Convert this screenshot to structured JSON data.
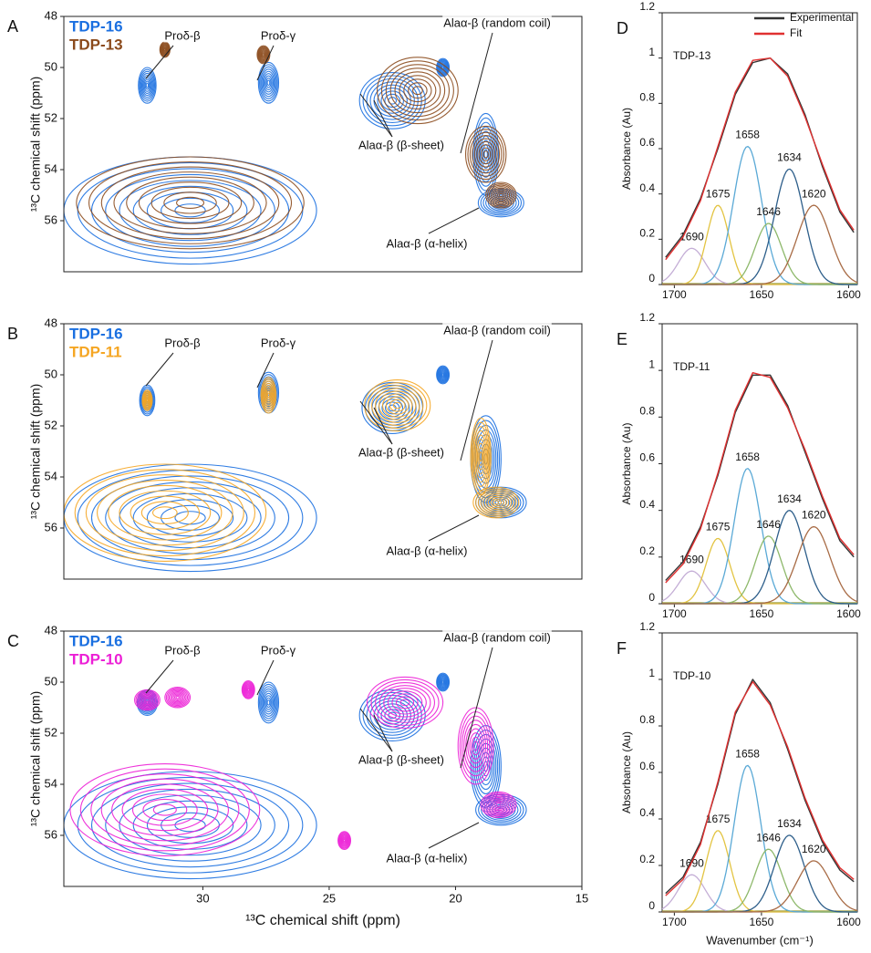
{
  "chart_data": [
    {
      "type": "contour",
      "panel_label": "A",
      "xlim": [
        35.5,
        15
      ],
      "ylim": [
        48,
        58
      ],
      "yticks": [
        48,
        50,
        52,
        54,
        56
      ],
      "y_label": "¹³C chemical shift (ppm)",
      "series": [
        {
          "name": "TDP-16",
          "color": "#1a6fe0",
          "x": [
            32.2,
            27.4,
            22.5,
            20.5,
            18.8,
            18.2,
            30.5
          ],
          "values": [
            50.7,
            50.6,
            51.3,
            50.0,
            53.4,
            55.3,
            55.6
          ],
          "x_widths": [
            0.7,
            0.8,
            2.6,
            0.5,
            1.0,
            1.8,
            10
          ],
          "y_widths": [
            1.4,
            1.6,
            2.2,
            0.7,
            3.2,
            1.1,
            4.2
          ]
        },
        {
          "name": "TDP-13",
          "color": "#8b4a1c",
          "x": [
            31.5,
            27.6,
            21.5,
            18.8,
            18.2,
            30.5
          ],
          "values": [
            49.3,
            49.5,
            50.9,
            53.4,
            55.0,
            55.3
          ],
          "x_widths": [
            0.4,
            0.5,
            3.2,
            1.6,
            1.2,
            9
          ],
          "y_widths": [
            0.6,
            0.7,
            2.6,
            2.2,
            1.0,
            3.6
          ]
        }
      ],
      "annotations": [
        "Proδ-β",
        "Proδ-γ",
        "Alaα-β (random coil)",
        "Alaα-β (β-sheet)",
        "Alaα-β (α-helix)"
      ]
    },
    {
      "type": "contour",
      "panel_label": "B",
      "xlim": [
        35.5,
        15
      ],
      "ylim": [
        48,
        58
      ],
      "yticks": [
        48,
        50,
        52,
        54,
        56
      ],
      "y_label": "¹³C chemical shift (ppm)",
      "series": [
        {
          "name": "TDP-16",
          "color": "#1a6fe0",
          "x": [
            32.2,
            27.4,
            22.5,
            20.5,
            18.8,
            18.2,
            30.5
          ],
          "values": [
            51.0,
            50.7,
            51.3,
            50.0,
            53.3,
            55.0,
            55.6
          ],
          "x_widths": [
            0.6,
            0.8,
            2.4,
            0.5,
            1.2,
            2.0,
            10
          ],
          "y_widths": [
            1.2,
            1.6,
            2.0,
            0.7,
            3.4,
            1.2,
            4.2
          ]
        },
        {
          "name": "TDP-11",
          "color": "#f5a623",
          "x": [
            32.2,
            27.4,
            22.3,
            19.0,
            18.4,
            31.5
          ],
          "values": [
            51.0,
            50.8,
            51.2,
            53.2,
            55.0,
            55.4
          ],
          "x_widths": [
            0.4,
            0.6,
            2.6,
            0.8,
            1.8,
            8
          ],
          "y_widths": [
            0.8,
            1.4,
            2.0,
            3.0,
            1.2,
            3.8
          ]
        }
      ],
      "annotations": [
        "Proδ-β",
        "Proδ-γ",
        "Alaα-β (random coil)",
        "Alaα-β (β-sheet)",
        "Alaα-β (α-helix)"
      ]
    },
    {
      "type": "contour",
      "panel_label": "C",
      "xlim": [
        35.5,
        15
      ],
      "ylim": [
        48,
        58
      ],
      "xticks": [
        30,
        25,
        20,
        15
      ],
      "yticks": [
        48,
        50,
        52,
        54,
        56
      ],
      "x_label": "¹³C chemical shift (ppm)",
      "y_label": "¹³C chemical shift (ppm)",
      "series": [
        {
          "name": "TDP-16",
          "color": "#1a6fe0",
          "x": [
            32.2,
            27.4,
            22.5,
            20.5,
            18.8,
            18.2,
            30.5
          ],
          "values": [
            50.8,
            50.8,
            51.3,
            50.0,
            53.3,
            55.0,
            55.6
          ],
          "x_widths": [
            0.8,
            0.8,
            2.6,
            0.5,
            1.2,
            2.0,
            10
          ],
          "y_widths": [
            1.0,
            1.6,
            2.0,
            0.7,
            3.2,
            1.2,
            4.2
          ]
        },
        {
          "name": "TDP-10",
          "color": "#ec1fd6",
          "x": [
            32.2,
            31.0,
            28.2,
            22.0,
            19.2,
            18.3,
            31.5,
            24.4
          ],
          "values": [
            50.7,
            50.6,
            50.3,
            50.8,
            52.5,
            54.8,
            55.0,
            56.2
          ],
          "x_widths": [
            1.0,
            1.0,
            0.5,
            3.0,
            1.4,
            1.4,
            7.5,
            0.5
          ],
          "y_widths": [
            0.8,
            0.8,
            0.7,
            2.0,
            3.0,
            1.0,
            3.6,
            0.7
          ]
        }
      ],
      "annotations": [
        "Proδ-β",
        "Proδ-γ",
        "Alaα-β (random coil)",
        "Alaα-β (β-sheet)",
        "Alaα-β (α-helix)"
      ]
    },
    {
      "type": "line",
      "panel_label": "D",
      "title": "TDP-13",
      "xlim": [
        1707,
        1595
      ],
      "ylim": [
        0,
        1.2
      ],
      "xticks": [
        1700,
        1650,
        1600
      ],
      "yticks": [
        0,
        0.2,
        0.4,
        0.6,
        0.8,
        1,
        1.2
      ],
      "y_label": "Absorbance (Au)",
      "legend": "upper right",
      "x": [
        1705,
        1695,
        1685,
        1675,
        1665,
        1655,
        1645,
        1635,
        1625,
        1615,
        1605,
        1597
      ],
      "series": [
        {
          "name": "Experimental",
          "color": "#333333",
          "values": [
            0.12,
            0.22,
            0.38,
            0.6,
            0.84,
            0.98,
            1.0,
            0.93,
            0.75,
            0.52,
            0.32,
            0.23
          ]
        },
        {
          "name": "Fit",
          "color": "#e03030",
          "values": [
            0.11,
            0.21,
            0.37,
            0.61,
            0.85,
            0.99,
            1.0,
            0.92,
            0.74,
            0.53,
            0.33,
            0.24
          ]
        }
      ],
      "components": [
        {
          "center": 1690,
          "height": 0.16,
          "fwhm": 18,
          "color": "#c4aed6"
        },
        {
          "center": 1675,
          "height": 0.35,
          "fwhm": 15,
          "color": "#e3c442"
        },
        {
          "center": 1658,
          "height": 0.61,
          "fwhm": 19,
          "color": "#5aa9d6"
        },
        {
          "center": 1646,
          "height": 0.27,
          "fwhm": 18,
          "color": "#8db86a"
        },
        {
          "center": 1634,
          "height": 0.51,
          "fwhm": 20,
          "color": "#2d5e8a"
        },
        {
          "center": 1620,
          "height": 0.35,
          "fwhm": 22,
          "color": "#a86b45"
        }
      ]
    },
    {
      "type": "line",
      "panel_label": "E",
      "title": "TDP-11",
      "xlim": [
        1707,
        1595
      ],
      "ylim": [
        0,
        1.2
      ],
      "xticks": [
        1700,
        1650,
        1600
      ],
      "yticks": [
        0,
        0.2,
        0.4,
        0.6,
        0.8,
        1,
        1.2
      ],
      "y_label": "Absorbance (Au)",
      "x": [
        1705,
        1695,
        1685,
        1675,
        1665,
        1655,
        1645,
        1635,
        1625,
        1615,
        1605,
        1597
      ],
      "series": [
        {
          "color": "#333333",
          "values": [
            0.1,
            0.18,
            0.33,
            0.55,
            0.82,
            0.98,
            0.98,
            0.85,
            0.65,
            0.45,
            0.27,
            0.2
          ]
        },
        {
          "color": "#e03030",
          "values": [
            0.09,
            0.17,
            0.32,
            0.56,
            0.83,
            0.99,
            0.97,
            0.84,
            0.66,
            0.46,
            0.28,
            0.21
          ]
        }
      ],
      "components": [
        {
          "center": 1690,
          "height": 0.14,
          "fwhm": 18,
          "color": "#c4aed6"
        },
        {
          "center": 1675,
          "height": 0.28,
          "fwhm": 16,
          "color": "#e3c442"
        },
        {
          "center": 1658,
          "height": 0.58,
          "fwhm": 18,
          "color": "#5aa9d6"
        },
        {
          "center": 1646,
          "height": 0.29,
          "fwhm": 18,
          "color": "#8db86a"
        },
        {
          "center": 1634,
          "height": 0.4,
          "fwhm": 20,
          "color": "#2d5e8a"
        },
        {
          "center": 1620,
          "height": 0.33,
          "fwhm": 22,
          "color": "#a86b45"
        }
      ]
    },
    {
      "type": "line",
      "panel_label": "F",
      "title": "TDP-10",
      "xlim": [
        1707,
        1595
      ],
      "ylim": [
        0,
        1.2
      ],
      "xticks": [
        1700,
        1650,
        1600
      ],
      "yticks": [
        0,
        0.2,
        0.4,
        0.6,
        0.8,
        1,
        1.2
      ],
      "y_label": "Absorbance (Au)",
      "x_label": "Wavenumber (cm⁻¹)",
      "x": [
        1705,
        1695,
        1685,
        1675,
        1665,
        1655,
        1645,
        1635,
        1625,
        1615,
        1605,
        1597
      ],
      "series": [
        {
          "color": "#333333",
          "values": [
            0.08,
            0.15,
            0.3,
            0.55,
            0.85,
            1.0,
            0.9,
            0.7,
            0.48,
            0.3,
            0.18,
            0.13
          ]
        },
        {
          "color": "#e03030",
          "values": [
            0.07,
            0.14,
            0.29,
            0.56,
            0.86,
            0.99,
            0.89,
            0.71,
            0.49,
            0.31,
            0.19,
            0.14
          ]
        }
      ],
      "components": [
        {
          "center": 1690,
          "height": 0.16,
          "fwhm": 18,
          "color": "#c4aed6"
        },
        {
          "center": 1675,
          "height": 0.35,
          "fwhm": 16,
          "color": "#e3c442"
        },
        {
          "center": 1658,
          "height": 0.63,
          "fwhm": 18,
          "color": "#5aa9d6"
        },
        {
          "center": 1646,
          "height": 0.27,
          "fwhm": 18,
          "color": "#8db86a"
        },
        {
          "center": 1634,
          "height": 0.33,
          "fwhm": 20,
          "color": "#2d5e8a"
        },
        {
          "center": 1620,
          "height": 0.22,
          "fwhm": 22,
          "color": "#a86b45"
        }
      ]
    }
  ]
}
